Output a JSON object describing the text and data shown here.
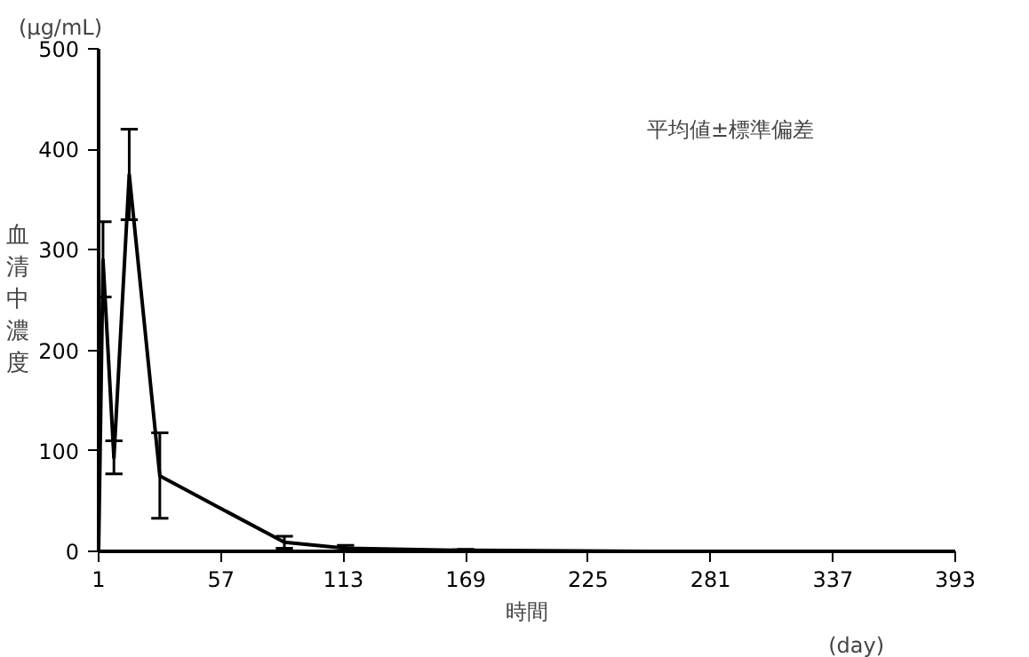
{
  "chart_data": {
    "type": "line",
    "xlabel": "時間",
    "ylabel": "血清中濃度",
    "annotations": [
      "平均値±標準偏差",
      "(μg/mL)",
      "(day)"
    ],
    "x": [
      1,
      3,
      8,
      15,
      29,
      86,
      114,
      169,
      253,
      367
    ],
    "series": [
      {
        "color": "#000000",
        "values": [
          0,
          290,
          93,
          375,
          75,
          9,
          3,
          1,
          0,
          0
        ],
        "errors": [
          null,
          [
            253,
            328
          ],
          [
            77,
            110
          ],
          [
            330,
            420
          ],
          [
            33,
            118
          ],
          [
            3,
            15
          ],
          [
            0,
            6
          ],
          [
            0,
            2
          ],
          null,
          null
        ]
      }
    ],
    "xlim": [
      1,
      393
    ],
    "xticks": [
      1,
      57,
      113,
      169,
      225,
      281,
      337,
      393
    ],
    "ylim": [
      0,
      500
    ],
    "yticks": [
      0,
      100,
      200,
      300,
      400,
      500
    ],
    "grid": false,
    "marker": "none",
    "line_style": "solid"
  }
}
